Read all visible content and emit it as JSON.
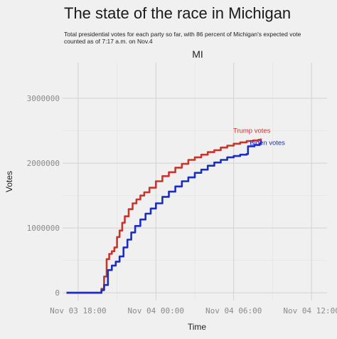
{
  "chart_data": {
    "type": "line",
    "title": "The state of the race in Michigan",
    "subtitle": [
      "Total presidential votes for each party so far, with 86 percent of Michigan's expected vote",
      "counted as of 7:17 a.m. on Nov.4"
    ],
    "facet_label": "MI",
    "xlabel": "Time",
    "ylabel": "Votes",
    "x_ticks": [
      "Nov 03 18:00",
      "Nov 04 00:00",
      "Nov 04 06:00",
      "Nov 04 12:00"
    ],
    "x_tick_hours": [
      18,
      24,
      30,
      36
    ],
    "y_ticks": [
      0,
      1000000,
      2000000,
      3000000
    ],
    "y_tick_labels": [
      "0",
      "1000000",
      "2000000",
      "3000000"
    ],
    "xlim_hours": [
      16.8,
      37.2
    ],
    "ylim": [
      -120000,
      3550000
    ],
    "grid": true,
    "legend": "direct labels at line ends",
    "x_unit_note": "x values are hours after Nov 03 00:00",
    "series": [
      {
        "name": "Trump votes",
        "color": "#c8352b",
        "label_x_hour": 31.4,
        "label_y": 2470000,
        "label_anchor": "middle",
        "x": [
          17.1,
          19.6,
          19.8,
          20.0,
          20.2,
          20.4,
          20.6,
          20.8,
          21.0,
          21.2,
          21.4,
          21.6,
          21.9,
          22.2,
          22.5,
          22.8,
          23.1,
          23.5,
          24.0,
          24.5,
          25.0,
          25.5,
          26.0,
          26.5,
          27.0,
          27.5,
          28.0,
          28.5,
          29.0,
          29.5,
          30.0,
          30.5,
          31.0,
          31.5,
          31.9,
          32.1
        ],
        "y": [
          0,
          0,
          60000,
          250000,
          520000,
          600000,
          640000,
          700000,
          860000,
          960000,
          1080000,
          1180000,
          1290000,
          1380000,
          1440000,
          1500000,
          1550000,
          1620000,
          1720000,
          1800000,
          1860000,
          1930000,
          1990000,
          2050000,
          2090000,
          2130000,
          2170000,
          2200000,
          2240000,
          2270000,
          2300000,
          2320000,
          2340000,
          2350000,
          2360000,
          2380000
        ]
      },
      {
        "name": "Biden votes",
        "color": "#1c2dc2",
        "label_x_hour": 32.6,
        "label_y": 2280000,
        "label_anchor": "middle",
        "x": [
          17.1,
          19.6,
          19.8,
          20.0,
          20.3,
          20.6,
          20.9,
          21.2,
          21.5,
          21.8,
          22.1,
          22.4,
          22.8,
          23.2,
          23.6,
          24.0,
          24.5,
          25.0,
          25.5,
          26.0,
          26.5,
          27.0,
          27.5,
          28.0,
          28.5,
          29.0,
          29.5,
          30.0,
          30.5,
          31.0,
          31.1,
          31.6,
          32.0,
          32.1
        ],
        "y": [
          0,
          0,
          40000,
          120000,
          350000,
          420000,
          480000,
          560000,
          700000,
          820000,
          930000,
          1030000,
          1130000,
          1220000,
          1300000,
          1380000,
          1480000,
          1560000,
          1640000,
          1720000,
          1780000,
          1850000,
          1900000,
          1960000,
          2010000,
          2050000,
          2090000,
          2110000,
          2130000,
          2140000,
          2260000,
          2280000,
          2300000,
          2350000
        ]
      }
    ]
  }
}
